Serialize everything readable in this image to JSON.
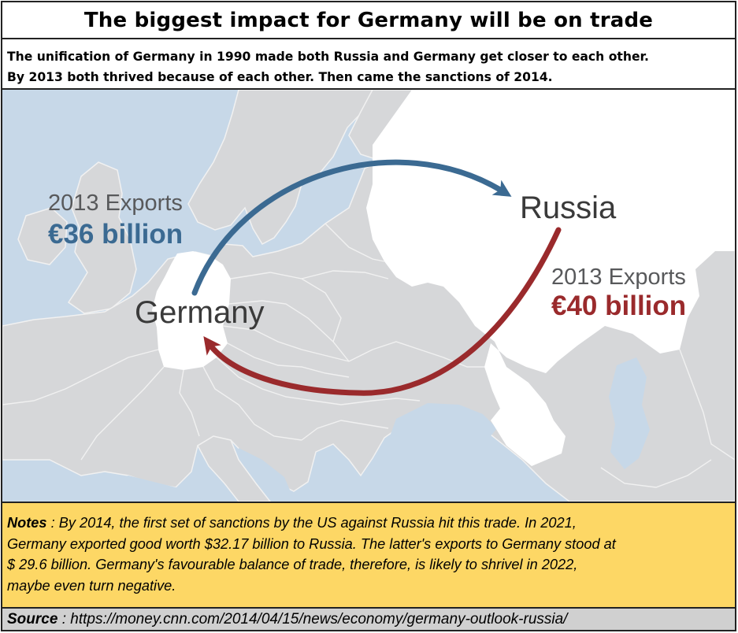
{
  "title": "The biggest impact for Germany will be on trade",
  "intro": {
    "line1": "The unification of Germany in 1990 made both Russia and Germany get closer to each other.",
    "line2": "By 2013 both thrived because of each other.  Then came the sanctions of 2014."
  },
  "map": {
    "colors": {
      "sea": "#c7d8e8",
      "land": "#d6d7d9",
      "border": "#f1f1f1",
      "highlight": "#ffffff",
      "germany_export_arrow": "#3b6a92",
      "russia_export_arrow": "#9a2a2c"
    },
    "germany_label": "Germany",
    "russia_label": "Russia",
    "germany_exports": {
      "title": "2013 Exports",
      "value": "€36 billion"
    },
    "russia_exports": {
      "title": "2013 Exports",
      "value": "€40 billion"
    }
  },
  "notes": {
    "label": "Notes",
    "line1": " :  By 2014, the first set of sanctions by the US against Russia hit this trade.  In 2021,",
    "line2": "Germany exported good worth $32.17 billion to Russia.  The latter's exports to Germany stood at",
    "line3": "$ 29.6 billion.   Germany's favourable balance of trade, therefore, is likely to shrivel in 2022,",
    "line4": "maybe even turn negative."
  },
  "source": {
    "label": "Source",
    "text": " : https://money.cnn.com/2014/04/15/news/economy/germany-outlook-russia/"
  }
}
